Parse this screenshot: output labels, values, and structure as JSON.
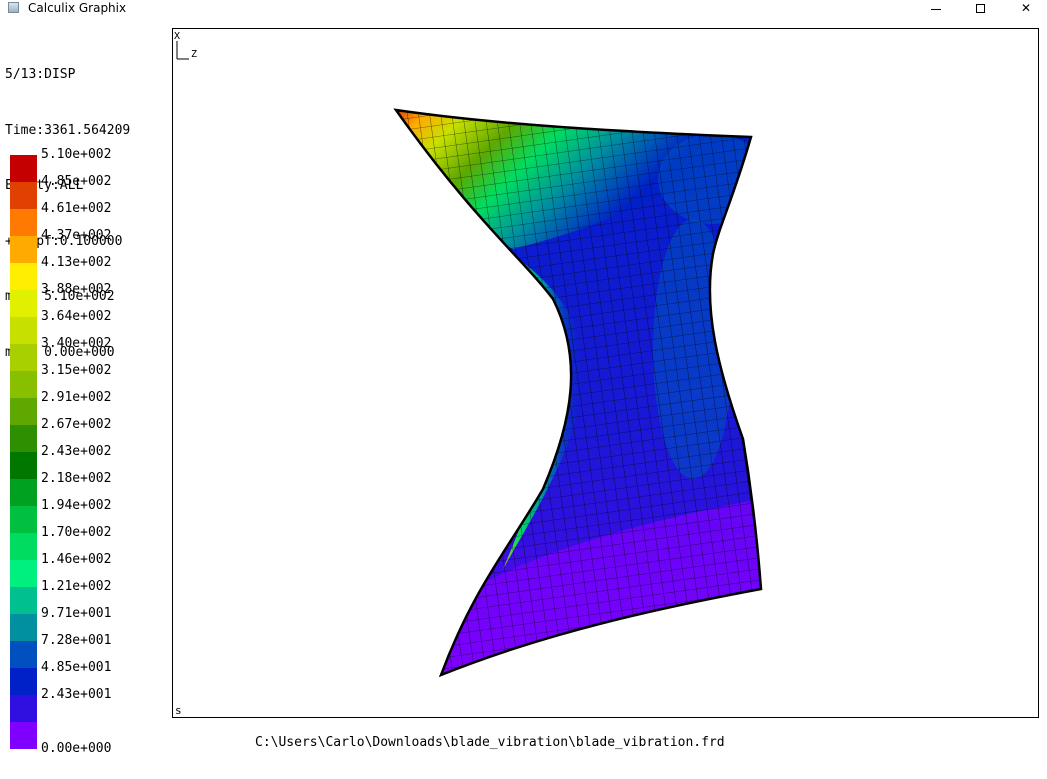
{
  "window": {
    "title": "Calculix Graphix",
    "controls": [
      "minimize",
      "maximize",
      "close"
    ],
    "close_glyph": "✕"
  },
  "info": {
    "step": "5/13:DISP",
    "time": "Time:3361.564209",
    "entity": "Entity:ALL",
    "dispf": "+Dispf:0.100000",
    "max": "max: 5.10e+002",
    "min": "min: 0.00e+000"
  },
  "legend": {
    "labels": [
      "5.10e+002",
      "4.85e+002",
      "4.61e+002",
      "4.37e+002",
      "4.13e+002",
      "3.88e+002",
      "3.64e+002",
      "3.40e+002",
      "3.15e+002",
      "2.91e+002",
      "2.67e+002",
      "2.43e+002",
      "2.18e+002",
      "1.94e+002",
      "1.70e+002",
      "1.46e+002",
      "1.21e+002",
      "9.71e+001",
      "7.28e+001",
      "4.85e+001",
      "2.43e+001",
      "0.00e+000"
    ],
    "colors": [
      "#c40000",
      "#e04000",
      "#ff7a00",
      "#ffaa00",
      "#ffee00",
      "#e0f000",
      "#c8e000",
      "#a8d000",
      "#88c000",
      "#5ea800",
      "#2e9000",
      "#007800",
      "#00a020",
      "#00c040",
      "#00dc60",
      "#00f080",
      "#00c090",
      "#0090a0",
      "#0050c0",
      "#0020c8",
      "#3010e0",
      "#8000ff"
    ]
  },
  "viewport": {
    "mode_label": "s",
    "axes": [
      "X",
      "Z"
    ]
  },
  "status": {
    "filepath": "C:\\Users\\Carlo\\Downloads\\blade_vibration\\blade_vibration.frd"
  }
}
